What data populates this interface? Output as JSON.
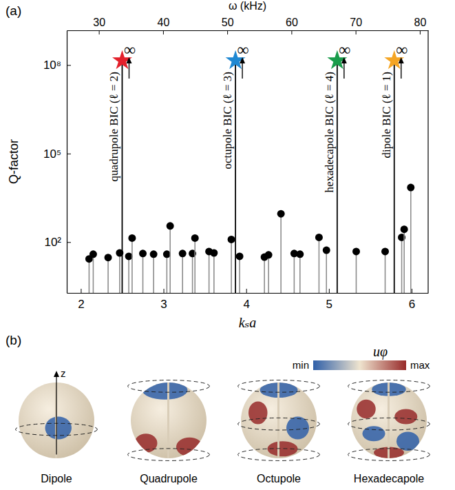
{
  "chart_data": {
    "type": "stem",
    "panel_label": "(a)",
    "x_label": "kₛa",
    "y_label": "Q-factor",
    "x2_label": "ω (kHz)",
    "log": "y",
    "grid": false,
    "xlim": [
      1.83,
      6.2
    ],
    "xticks": [
      2,
      3,
      4,
      5,
      6
    ],
    "x2lim": [
      25.0,
      81.3
    ],
    "x2ticks": [
      30,
      40,
      50,
      60,
      70,
      80
    ],
    "ylim": [
      1.9,
      1500000000
    ],
    "yticks": [
      {
        "value": 100,
        "label": "10²"
      },
      {
        "value": 100000,
        "label": "10⁵"
      },
      {
        "value": 100000000,
        "label": "10⁸"
      }
    ],
    "series": [
      {
        "color": "#000000",
        "marker": "circle",
        "x": [
          2.1,
          2.15,
          2.33,
          2.47,
          2.58,
          2.62,
          2.75,
          2.88,
          3.04,
          3.08,
          3.23,
          3.35,
          3.38,
          3.55,
          3.61,
          3.82,
          3.92,
          4.22,
          4.27,
          4.42,
          4.58,
          4.65,
          4.88,
          4.97,
          5.33,
          5.68,
          5.88,
          5.91,
          5.99
        ],
        "values": [
          27,
          39,
          30,
          43,
          33,
          137,
          41,
          39,
          39,
          354,
          41,
          41,
          137,
          48,
          43,
          123,
          33,
          31,
          37,
          912,
          41,
          39,
          145,
          53,
          48,
          48,
          145,
          272,
          7100
        ]
      }
    ],
    "bics": [
      {
        "label": "quadrupole BIC (ℓ = 2)",
        "x": 2.5,
        "color": "#e3202b",
        "marker": "star",
        "q_label": "∞"
      },
      {
        "label": "octupole BIC (ℓ = 3)",
        "x": 3.87,
        "color": "#1f88d2",
        "marker": "star",
        "q_label": "∞"
      },
      {
        "label": "hexadecapole BIC (ℓ = 4)",
        "x": 5.1,
        "color": "#1a9c4b",
        "marker": "star",
        "q_label": "∞"
      },
      {
        "label": "dipole BIC (ℓ = 1)",
        "x": 5.79,
        "color": "#f5a524",
        "marker": "star",
        "q_label": "∞"
      }
    ]
  },
  "figure": {
    "panel_label": "(b)",
    "colorbar": {
      "label": "uφ",
      "min_label": "min",
      "max_label": "max"
    },
    "axis_label": "z",
    "items": [
      {
        "label": "Dipole"
      },
      {
        "label": "Quadrupole"
      },
      {
        "label": "Octupole"
      },
      {
        "label": "Hexadecapole"
      }
    ]
  }
}
